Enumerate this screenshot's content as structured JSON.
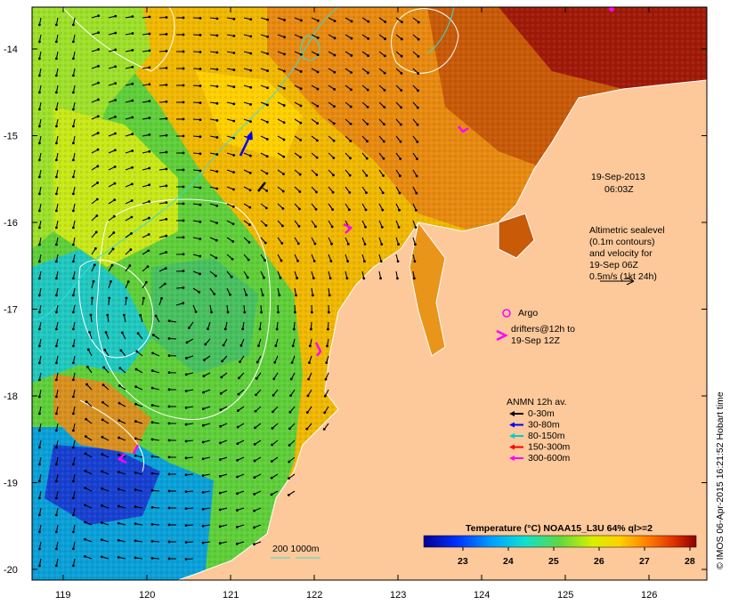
{
  "map": {
    "lat_ticks": [
      "-14",
      "-15",
      "-16",
      "-17",
      "-18",
      "-19",
      "-20"
    ],
    "lon_ticks": [
      "119",
      "120",
      "121",
      "122",
      "123",
      "124",
      "125",
      "126"
    ],
    "date_line1": "19-Sep-2013",
    "date_line2": "06:03Z",
    "altimetry_text": [
      "Altimetric sealevel",
      "(0.1m contours)",
      "and velocity for",
      "19-Sep 06Z",
      "0.5m/s (1kt 24h)"
    ],
    "argo_label": "Argo",
    "drifters_text": [
      "drifters@12h to",
      "19-Sep 12Z"
    ],
    "anmn_title": "ANMN 12h av.",
    "anmn_depths": [
      {
        "label": "0-30m",
        "color": "#000000"
      },
      {
        "label": "30-80m",
        "color": "#0000ff"
      },
      {
        "label": "80-150m",
        "color": "#00cccc"
      },
      {
        "label": "150-300m",
        "color": "#ff0000"
      },
      {
        "label": "300-600m",
        "color": "#ff00ff"
      }
    ],
    "isobath_label": "200  1000m",
    "colorbar_title": "Temperature (°C) NOAA15_L3U 64% ql>=2",
    "colorbar_ticks": [
      "23",
      "24",
      "25",
      "26",
      "27",
      "28"
    ],
    "credit": "© IMOS 06-Apr-2015 16:21:52 Hobart time",
    "colors": {
      "land": "#fdc99a",
      "argo": "#ff00ff",
      "drifter": "#ff00ff",
      "contour": "#ffffff",
      "isobath": "#33dddd"
    }
  }
}
